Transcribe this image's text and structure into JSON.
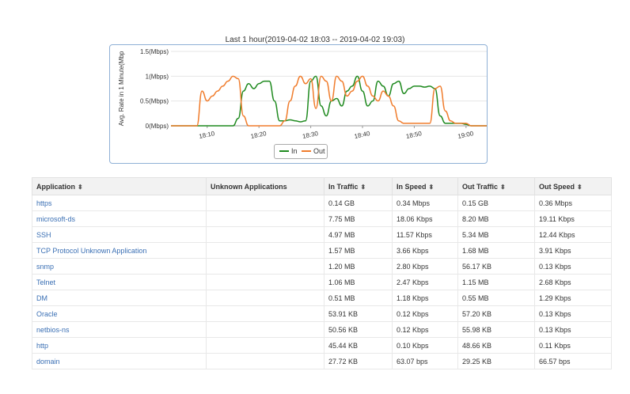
{
  "chart_title": "Last 1 hour(2019-04-02 18:03 -- 2019-04-02 19:03)",
  "chart_data": {
    "type": "line",
    "title": "Last 1 hour(2019-04-02 18:03 -- 2019-04-02 19:03)",
    "ylabel": "Avg. Rate in 1 Minute(Mbp",
    "xlabel": "",
    "ylim": [
      0,
      1.5
    ],
    "y_ticks": [
      "0(Mbps)",
      "0.5(Mbps)",
      "1(Mbps)",
      "1.5(Mbps)"
    ],
    "x_ticks": [
      "18:10",
      "18:20",
      "18:30",
      "18:40",
      "18:50",
      "19:00"
    ],
    "x_tick_values": [
      10,
      20,
      30,
      40,
      50,
      60
    ],
    "xlim": [
      3,
      64
    ],
    "grid": true,
    "legend": "bottom",
    "x": [
      3,
      4,
      5,
      6,
      7,
      8,
      9,
      10,
      11,
      12,
      13,
      14,
      15,
      16,
      17,
      18,
      19,
      20,
      21,
      22,
      23,
      24,
      25,
      26,
      27,
      28,
      29,
      30,
      31,
      32,
      33,
      34,
      35,
      36,
      37,
      38,
      39,
      40,
      41,
      42,
      43,
      44,
      45,
      46,
      47,
      48,
      49,
      50,
      51,
      52,
      53,
      54,
      55,
      56,
      57,
      58,
      59,
      60,
      61,
      62,
      63,
      64
    ],
    "series": [
      {
        "name": "In",
        "color": "#1f8a1f",
        "values": [
          0,
          0,
          0,
          0,
          0,
          0,
          0,
          0,
          0,
          0,
          0,
          0,
          0,
          0.15,
          0.7,
          0.85,
          0.75,
          0.85,
          0.9,
          0.9,
          0.5,
          0.1,
          0.1,
          0.12,
          0.1,
          0.08,
          0.1,
          0.9,
          1.0,
          0.4,
          0.2,
          0.5,
          0.55,
          0.4,
          0.7,
          0.8,
          1.0,
          0.7,
          0.4,
          0.5,
          0.9,
          0.8,
          0.6,
          0.85,
          0.9,
          0.65,
          0.75,
          0.8,
          0.8,
          0.78,
          0.8,
          0.75,
          0.2,
          0.05,
          0.05,
          0.05,
          0.05,
          0.03,
          0,
          0,
          0,
          0
        ]
      },
      {
        "name": "Out",
        "color": "#f07c2c",
        "values": [
          0,
          0,
          0,
          0,
          0,
          0,
          0.7,
          0.5,
          0.6,
          0.7,
          0.8,
          0.9,
          1.0,
          0.95,
          0.2,
          0,
          0,
          0,
          0,
          0,
          0,
          0,
          0.1,
          0.5,
          0.8,
          1.0,
          0.85,
          0.95,
          0.35,
          1.0,
          0.9,
          0.5,
          1.0,
          0.9,
          0.6,
          0.7,
          0.9,
          1.0,
          0.8,
          0.6,
          0.5,
          0.7,
          0.6,
          0.4,
          0.1,
          0.05,
          0.05,
          0.05,
          0.05,
          0.05,
          0.05,
          0.75,
          0.8,
          0.3,
          0.1,
          0.05,
          0.05,
          0.05,
          0,
          0,
          0,
          0
        ]
      }
    ]
  },
  "legend": {
    "in_label": "In",
    "out_label": "Out"
  },
  "table": {
    "headers": {
      "application": "Application",
      "unknown": "Unknown Applications",
      "in_traffic": "In Traffic",
      "in_speed": "In Speed",
      "out_traffic": "Out Traffic",
      "out_speed": "Out Speed"
    },
    "sort_icon": "sort-icon",
    "rows": [
      {
        "app": "https",
        "unknown": "",
        "in_traffic": "0.14 GB",
        "in_speed": "0.34 Mbps",
        "out_traffic": "0.15 GB",
        "out_speed": "0.36 Mbps"
      },
      {
        "app": "microsoft-ds",
        "unknown": "",
        "in_traffic": "7.75 MB",
        "in_speed": "18.06 Kbps",
        "out_traffic": "8.20 MB",
        "out_speed": "19.11 Kbps"
      },
      {
        "app": "SSH",
        "unknown": "",
        "in_traffic": "4.97 MB",
        "in_speed": "11.57 Kbps",
        "out_traffic": "5.34 MB",
        "out_speed": "12.44 Kbps"
      },
      {
        "app": "TCP Protocol Unknown Application",
        "unknown": "",
        "in_traffic": "1.57 MB",
        "in_speed": "3.66 Kbps",
        "out_traffic": "1.68 MB",
        "out_speed": "3.91 Kbps"
      },
      {
        "app": "snmp",
        "unknown": "",
        "in_traffic": "1.20 MB",
        "in_speed": "2.80 Kbps",
        "out_traffic": "56.17 KB",
        "out_speed": "0.13 Kbps"
      },
      {
        "app": "Telnet",
        "unknown": "",
        "in_traffic": "1.06 MB",
        "in_speed": "2.47 Kbps",
        "out_traffic": "1.15 MB",
        "out_speed": "2.68 Kbps"
      },
      {
        "app": "DM",
        "unknown": "",
        "in_traffic": "0.51 MB",
        "in_speed": "1.18 Kbps",
        "out_traffic": "0.55 MB",
        "out_speed": "1.29 Kbps"
      },
      {
        "app": "Oracle",
        "unknown": "",
        "in_traffic": "53.91 KB",
        "in_speed": "0.12 Kbps",
        "out_traffic": "57.20 KB",
        "out_speed": "0.13 Kbps"
      },
      {
        "app": "netbios-ns",
        "unknown": "",
        "in_traffic": "50.56 KB",
        "in_speed": "0.12 Kbps",
        "out_traffic": "55.98 KB",
        "out_speed": "0.13 Kbps"
      },
      {
        "app": "http",
        "unknown": "",
        "in_traffic": "45.44 KB",
        "in_speed": "0.10 Kbps",
        "out_traffic": "48.66 KB",
        "out_speed": "0.11 Kbps"
      },
      {
        "app": "domain",
        "unknown": "",
        "in_traffic": "27.72 KB",
        "in_speed": "63.07 bps",
        "out_traffic": "29.25 KB",
        "out_speed": "66.57 bps"
      }
    ]
  }
}
